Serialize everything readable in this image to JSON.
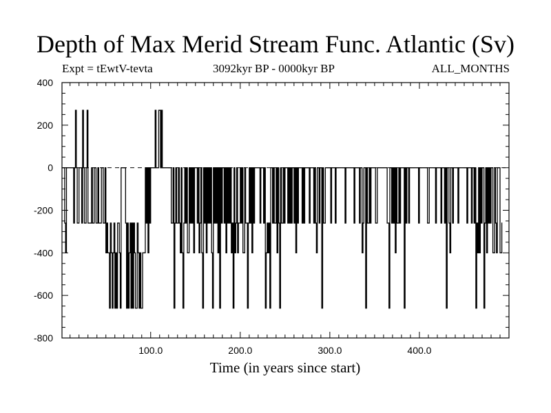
{
  "header": {
    "title": "Depth of Max Merid Stream Func. Atlantic (Sv)",
    "expt_label": "Expt = tEwtV-tevta",
    "period_label": "3092kyr BP - 0000kyr BP",
    "months_label": "ALL_MONTHS"
  },
  "chart_data": {
    "type": "line",
    "title": "Depth of Max Merid Stream Func. Atlantic (Sv)",
    "xlabel": "Time (in years since start)",
    "ylabel": "",
    "xlim": [
      1,
      500
    ],
    "ylim": [
      -800,
      400
    ],
    "x_ticks": [
      100,
      200,
      300,
      400
    ],
    "x_tick_labels": [
      "100.0",
      "200.0",
      "300.0",
      "400.0"
    ],
    "y_ticks": [
      400,
      200,
      0,
      -200,
      -400,
      -600,
      -800
    ],
    "y_tick_labels": [
      "400",
      "200",
      "0",
      "-200",
      "-400",
      "-600",
      "-800"
    ],
    "reference_line": 0,
    "series": [
      {
        "name": "Depth of Max Merid Stream Func. Atlantic",
        "x_start": 1,
        "x_step": 1,
        "values": [
          0,
          0,
          0,
          -260,
          -400,
          0,
          0,
          0,
          0,
          0,
          0,
          0,
          0,
          -260,
          0,
          270,
          0,
          -260,
          -260,
          0,
          0,
          0,
          -260,
          270,
          0,
          -260,
          -260,
          0,
          270,
          -260,
          -260,
          -260,
          -260,
          0,
          -260,
          -260,
          0,
          0,
          -260,
          -260,
          0,
          -260,
          -260,
          -260,
          0,
          0,
          -260,
          -260,
          0,
          -400,
          -260,
          -400,
          -400,
          -660,
          -260,
          -400,
          -660,
          -400,
          -260,
          -660,
          -400,
          -660,
          -260,
          -260,
          -400,
          -660,
          0,
          0,
          0,
          0,
          0,
          -260,
          -660,
          -260,
          -660,
          -400,
          -260,
          -660,
          -260,
          -660,
          -260,
          -400,
          -660,
          -660,
          -260,
          -400,
          -660,
          -400,
          -660,
          -660,
          -400,
          -400,
          -400,
          0,
          -260,
          0,
          -400,
          0,
          -260,
          0,
          0,
          0,
          0,
          0,
          270,
          0,
          0,
          0,
          270,
          270,
          0,
          270,
          0,
          0,
          0,
          0,
          0,
          0,
          0,
          0,
          0,
          0,
          -260,
          -260,
          0,
          -660,
          -260,
          0,
          -260,
          -260,
          0,
          -260,
          -400,
          0,
          -400,
          -660,
          -260,
          0,
          -260,
          0,
          -400,
          -400,
          0,
          -260,
          0,
          -260,
          0,
          -400,
          0,
          0,
          0,
          -260,
          0,
          -400,
          -260,
          0,
          -400,
          -660,
          0,
          -260,
          0,
          -400,
          0,
          -260,
          0,
          -260,
          0,
          -400,
          -660,
          0,
          -260,
          0,
          -260,
          0,
          -400,
          0,
          -660,
          0,
          -260,
          0,
          0,
          -260,
          0,
          -400,
          0,
          -260,
          0,
          -260,
          0,
          -400,
          -260,
          -660,
          0,
          -400,
          -260,
          0,
          -400,
          -260,
          -260,
          0,
          -260,
          0,
          -400,
          -400,
          0,
          -260,
          -260,
          -660,
          -260,
          0,
          -260,
          0,
          -400,
          0,
          -260,
          0,
          0,
          0,
          0,
          0,
          0,
          -260,
          0,
          0,
          0,
          -260,
          0,
          -660,
          -400,
          -260,
          -400,
          -260,
          -660,
          0,
          0,
          -260,
          0,
          -260,
          -260,
          0,
          -400,
          0,
          -260,
          -660,
          0,
          -260,
          -260,
          0,
          -260,
          0,
          0,
          0,
          -260,
          0,
          -260,
          0,
          -260,
          0,
          0,
          -260,
          0,
          -400,
          0,
          -260,
          0,
          0,
          0,
          0,
          -260,
          0,
          -260,
          0,
          0,
          0,
          0,
          0,
          -260,
          0,
          0,
          0,
          0,
          -260,
          0,
          -260,
          -400,
          0,
          0,
          -260,
          0,
          0,
          -660,
          0,
          -260,
          -260,
          0,
          0,
          0,
          0,
          0,
          0,
          -260,
          0,
          0,
          0,
          0,
          -260,
          0,
          0,
          0,
          0,
          0,
          0,
          0,
          0,
          0,
          0,
          -260,
          0,
          0,
          0,
          0,
          0,
          0,
          0,
          0,
          0,
          -260,
          0,
          0,
          0,
          0,
          0,
          -260,
          0,
          0,
          -400,
          -260,
          0,
          0,
          -660,
          0,
          -260,
          -260,
          0,
          -260,
          0,
          0,
          0,
          0,
          0,
          -260,
          -260,
          0,
          0,
          0,
          0,
          0,
          0,
          0,
          0,
          0,
          0,
          0,
          -260,
          -260,
          -660,
          0,
          0,
          -260,
          0,
          -260,
          0,
          -400,
          0,
          -260,
          -260,
          0,
          -260,
          0,
          0,
          0,
          0,
          -660,
          0,
          -260,
          0,
          0,
          -260,
          0,
          0,
          0,
          0,
          0,
          0,
          0,
          0,
          0,
          0,
          -260,
          0,
          0,
          0,
          0,
          0,
          0,
          0,
          0,
          0,
          -260,
          -260,
          0,
          0,
          0,
          0,
          0,
          0,
          0,
          -260,
          0,
          0,
          0,
          0,
          0,
          -260,
          0,
          0,
          0,
          -260,
          0,
          -660,
          0,
          0,
          -260,
          -400,
          0,
          0,
          -260,
          0,
          0,
          0,
          0,
          0,
          -260,
          0,
          0,
          0,
          0,
          0,
          0,
          0,
          0,
          0,
          -260,
          0,
          0,
          0,
          0,
          -260,
          0,
          0,
          -260,
          0,
          -660,
          -260,
          -400,
          0,
          -400,
          0,
          -260,
          0,
          0,
          -660,
          -260,
          0,
          -400,
          0,
          -260,
          0,
          -260,
          0,
          0,
          -400,
          -400,
          0,
          -260,
          -400,
          0,
          0,
          0,
          -400,
          -400,
          -260
        ]
      }
    ]
  }
}
